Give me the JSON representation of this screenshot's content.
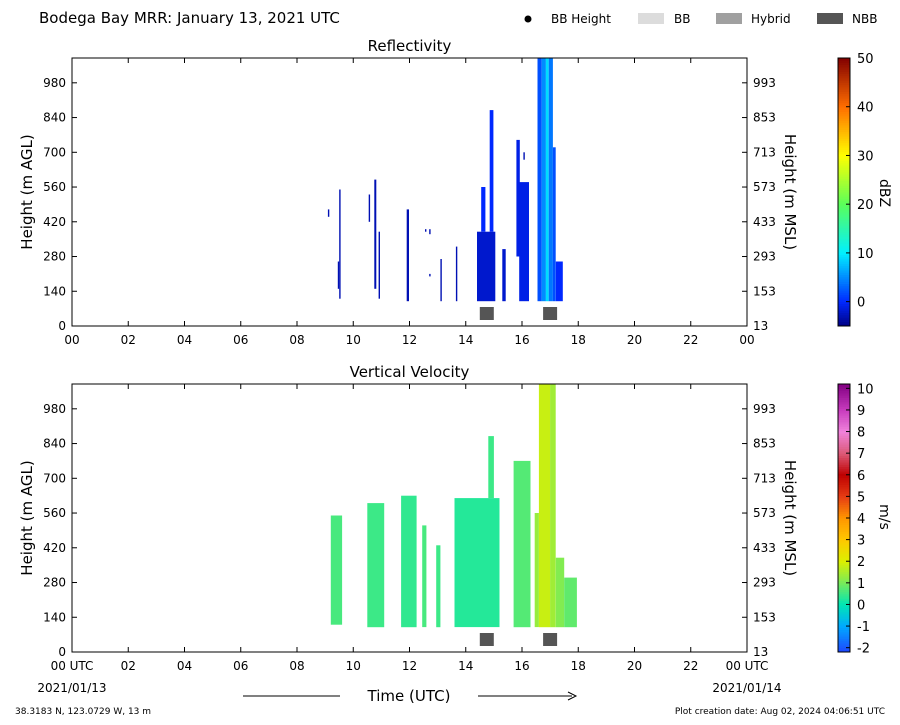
{
  "title": "Bodega Bay MRR:  January 13, 2021 UTC",
  "legend": [
    {
      "label": "BB Height",
      "marker": "dot",
      "color": "#000000"
    },
    {
      "label": "BB",
      "marker": "box",
      "color": "#dcdcdc"
    },
    {
      "label": "Hybrid",
      "marker": "box",
      "color": "#a0a0a0"
    },
    {
      "label": "NBB",
      "marker": "box",
      "color": "#555555"
    }
  ],
  "xaxis": {
    "label": "Time (UTC)",
    "ticks": [
      "00",
      "02",
      "04",
      "06",
      "08",
      "10",
      "12",
      "14",
      "16",
      "18",
      "20",
      "22",
      "00"
    ],
    "ticks_bottom": [
      "00 UTC",
      "02",
      "04",
      "06",
      "08",
      "10",
      "12",
      "14",
      "16",
      "18",
      "20",
      "22",
      "00 UTC"
    ],
    "start_date": "2021/01/13",
    "end_date": "2021/01/14"
  },
  "footer": {
    "location": "38.3183 N, 123.0729 W, 13 m",
    "created": "Plot creation date: Aug 02, 2024 04:06:51 UTC"
  },
  "colors": {
    "nbb": "#555555",
    "hybrid": "#a0a0a0",
    "bb": "#dcdcdc"
  },
  "chart_data": [
    {
      "type": "heatmap",
      "title": "Reflectivity",
      "ylabel": "Height (m AGL)",
      "ylabel_right": "Height (m MSL)",
      "yticks": [
        0,
        140,
        280,
        420,
        560,
        700,
        840,
        980
      ],
      "yticks_right": [
        13,
        153,
        293,
        433,
        573,
        713,
        853,
        993
      ],
      "xlim": [
        0,
        24
      ],
      "ylim": [
        0,
        1080
      ],
      "colorbar": {
        "label": "dBZ",
        "ticks": [
          0,
          10,
          20,
          30,
          40,
          50
        ],
        "range": [
          -5,
          50
        ]
      },
      "nbb_markers": [
        14.75,
        17.0
      ],
      "cells": [
        {
          "t0": 9.5,
          "t1": 9.55,
          "h0": 110,
          "h1": 550,
          "value": -3
        },
        {
          "t0": 9.45,
          "t1": 9.5,
          "h0": 150,
          "h1": 260,
          "value": -3
        },
        {
          "t0": 9.1,
          "t1": 9.15,
          "h0": 440,
          "h1": 470,
          "value": -3
        },
        {
          "t0": 10.55,
          "t1": 10.6,
          "h0": 420,
          "h1": 530,
          "value": -3
        },
        {
          "t0": 10.75,
          "t1": 10.82,
          "h0": 150,
          "h1": 590,
          "value": -3
        },
        {
          "t0": 10.9,
          "t1": 10.95,
          "h0": 110,
          "h1": 380,
          "value": -3
        },
        {
          "t0": 11.9,
          "t1": 11.98,
          "h0": 100,
          "h1": 470,
          "value": -3
        },
        {
          "t0": 12.55,
          "t1": 12.6,
          "h0": 380,
          "h1": 390,
          "value": -3
        },
        {
          "t0": 12.7,
          "t1": 12.75,
          "h0": 370,
          "h1": 390,
          "value": -3
        },
        {
          "t0": 12.7,
          "t1": 12.75,
          "h0": 200,
          "h1": 210,
          "value": -3
        },
        {
          "t0": 13.1,
          "t1": 13.15,
          "h0": 100,
          "h1": 270,
          "value": -3
        },
        {
          "t0": 13.65,
          "t1": 13.7,
          "h0": 100,
          "h1": 320,
          "value": -3
        },
        {
          "t0": 14.4,
          "t1": 15.05,
          "h0": 100,
          "h1": 380,
          "value": -2
        },
        {
          "t0": 14.55,
          "t1": 14.7,
          "h0": 380,
          "h1": 560,
          "value": 0
        },
        {
          "t0": 14.85,
          "t1": 14.98,
          "h0": 380,
          "h1": 870,
          "value": 0
        },
        {
          "t0": 15.3,
          "t1": 15.42,
          "h0": 100,
          "h1": 310,
          "value": -2
        },
        {
          "t0": 15.8,
          "t1": 15.92,
          "h0": 280,
          "h1": 750,
          "value": -1
        },
        {
          "t0": 15.9,
          "t1": 16.25,
          "h0": 100,
          "h1": 580,
          "value": -1
        },
        {
          "t0": 16.05,
          "t1": 16.1,
          "h0": 670,
          "h1": 700,
          "value": -3
        },
        {
          "t0": 16.55,
          "t1": 16.7,
          "h0": 100,
          "h1": 1090,
          "value": 2
        },
        {
          "t0": 16.7,
          "t1": 16.85,
          "h0": 100,
          "h1": 1090,
          "value": 5
        },
        {
          "t0": 16.85,
          "t1": 16.95,
          "h0": 100,
          "h1": 1090,
          "value": 9
        },
        {
          "t0": 16.95,
          "t1": 17.1,
          "h0": 100,
          "h1": 1090,
          "value": 4
        },
        {
          "t0": 17.1,
          "t1": 17.2,
          "h0": 100,
          "h1": 720,
          "value": 2
        },
        {
          "t0": 17.2,
          "t1": 17.45,
          "h0": 100,
          "h1": 260,
          "value": 0
        }
      ]
    },
    {
      "type": "heatmap",
      "title": "Vertical Velocity",
      "ylabel": "Height (m AGL)",
      "ylabel_right": "Height (m MSL)",
      "yticks": [
        0,
        140,
        280,
        420,
        560,
        700,
        840,
        980
      ],
      "yticks_right": [
        13,
        153,
        293,
        433,
        573,
        713,
        853,
        993
      ],
      "xlim": [
        0,
        24
      ],
      "ylim": [
        0,
        1080
      ],
      "colorbar": {
        "label": "m/s",
        "ticks": [
          -2,
          -1,
          0,
          1,
          2,
          3,
          4,
          5,
          6,
          7,
          8,
          9,
          10
        ],
        "range": [
          -2.2,
          10.2
        ]
      },
      "nbb_markers": [
        14.75,
        17.0
      ],
      "cells": [
        {
          "t0": 9.2,
          "t1": 9.6,
          "h0": 110,
          "h1": 550,
          "value": 0.6
        },
        {
          "t0": 10.5,
          "t1": 11.1,
          "h0": 100,
          "h1": 600,
          "value": 0.5
        },
        {
          "t0": 11.7,
          "t1": 12.25,
          "h0": 100,
          "h1": 630,
          "value": 0.4
        },
        {
          "t0": 12.45,
          "t1": 12.6,
          "h0": 100,
          "h1": 510,
          "value": 0.6
        },
        {
          "t0": 12.95,
          "t1": 13.1,
          "h0": 100,
          "h1": 430,
          "value": 0.5
        },
        {
          "t0": 13.6,
          "t1": 15.2,
          "h0": 100,
          "h1": 620,
          "value": 0.3
        },
        {
          "t0": 14.8,
          "t1": 15.0,
          "h0": 620,
          "h1": 870,
          "value": 0.5
        },
        {
          "t0": 15.7,
          "t1": 16.3,
          "h0": 100,
          "h1": 770,
          "value": 0.7
        },
        {
          "t0": 16.45,
          "t1": 16.6,
          "h0": 100,
          "h1": 560,
          "value": 1.3
        },
        {
          "t0": 16.6,
          "t1": 17.0,
          "h0": 100,
          "h1": 1090,
          "value": 1.8
        },
        {
          "t0": 17.0,
          "t1": 17.2,
          "h0": 100,
          "h1": 1090,
          "value": 1.4
        },
        {
          "t0": 17.2,
          "t1": 17.5,
          "h0": 100,
          "h1": 380,
          "value": 1.1
        },
        {
          "t0": 17.5,
          "t1": 17.95,
          "h0": 100,
          "h1": 300,
          "value": 0.8
        }
      ]
    }
  ]
}
